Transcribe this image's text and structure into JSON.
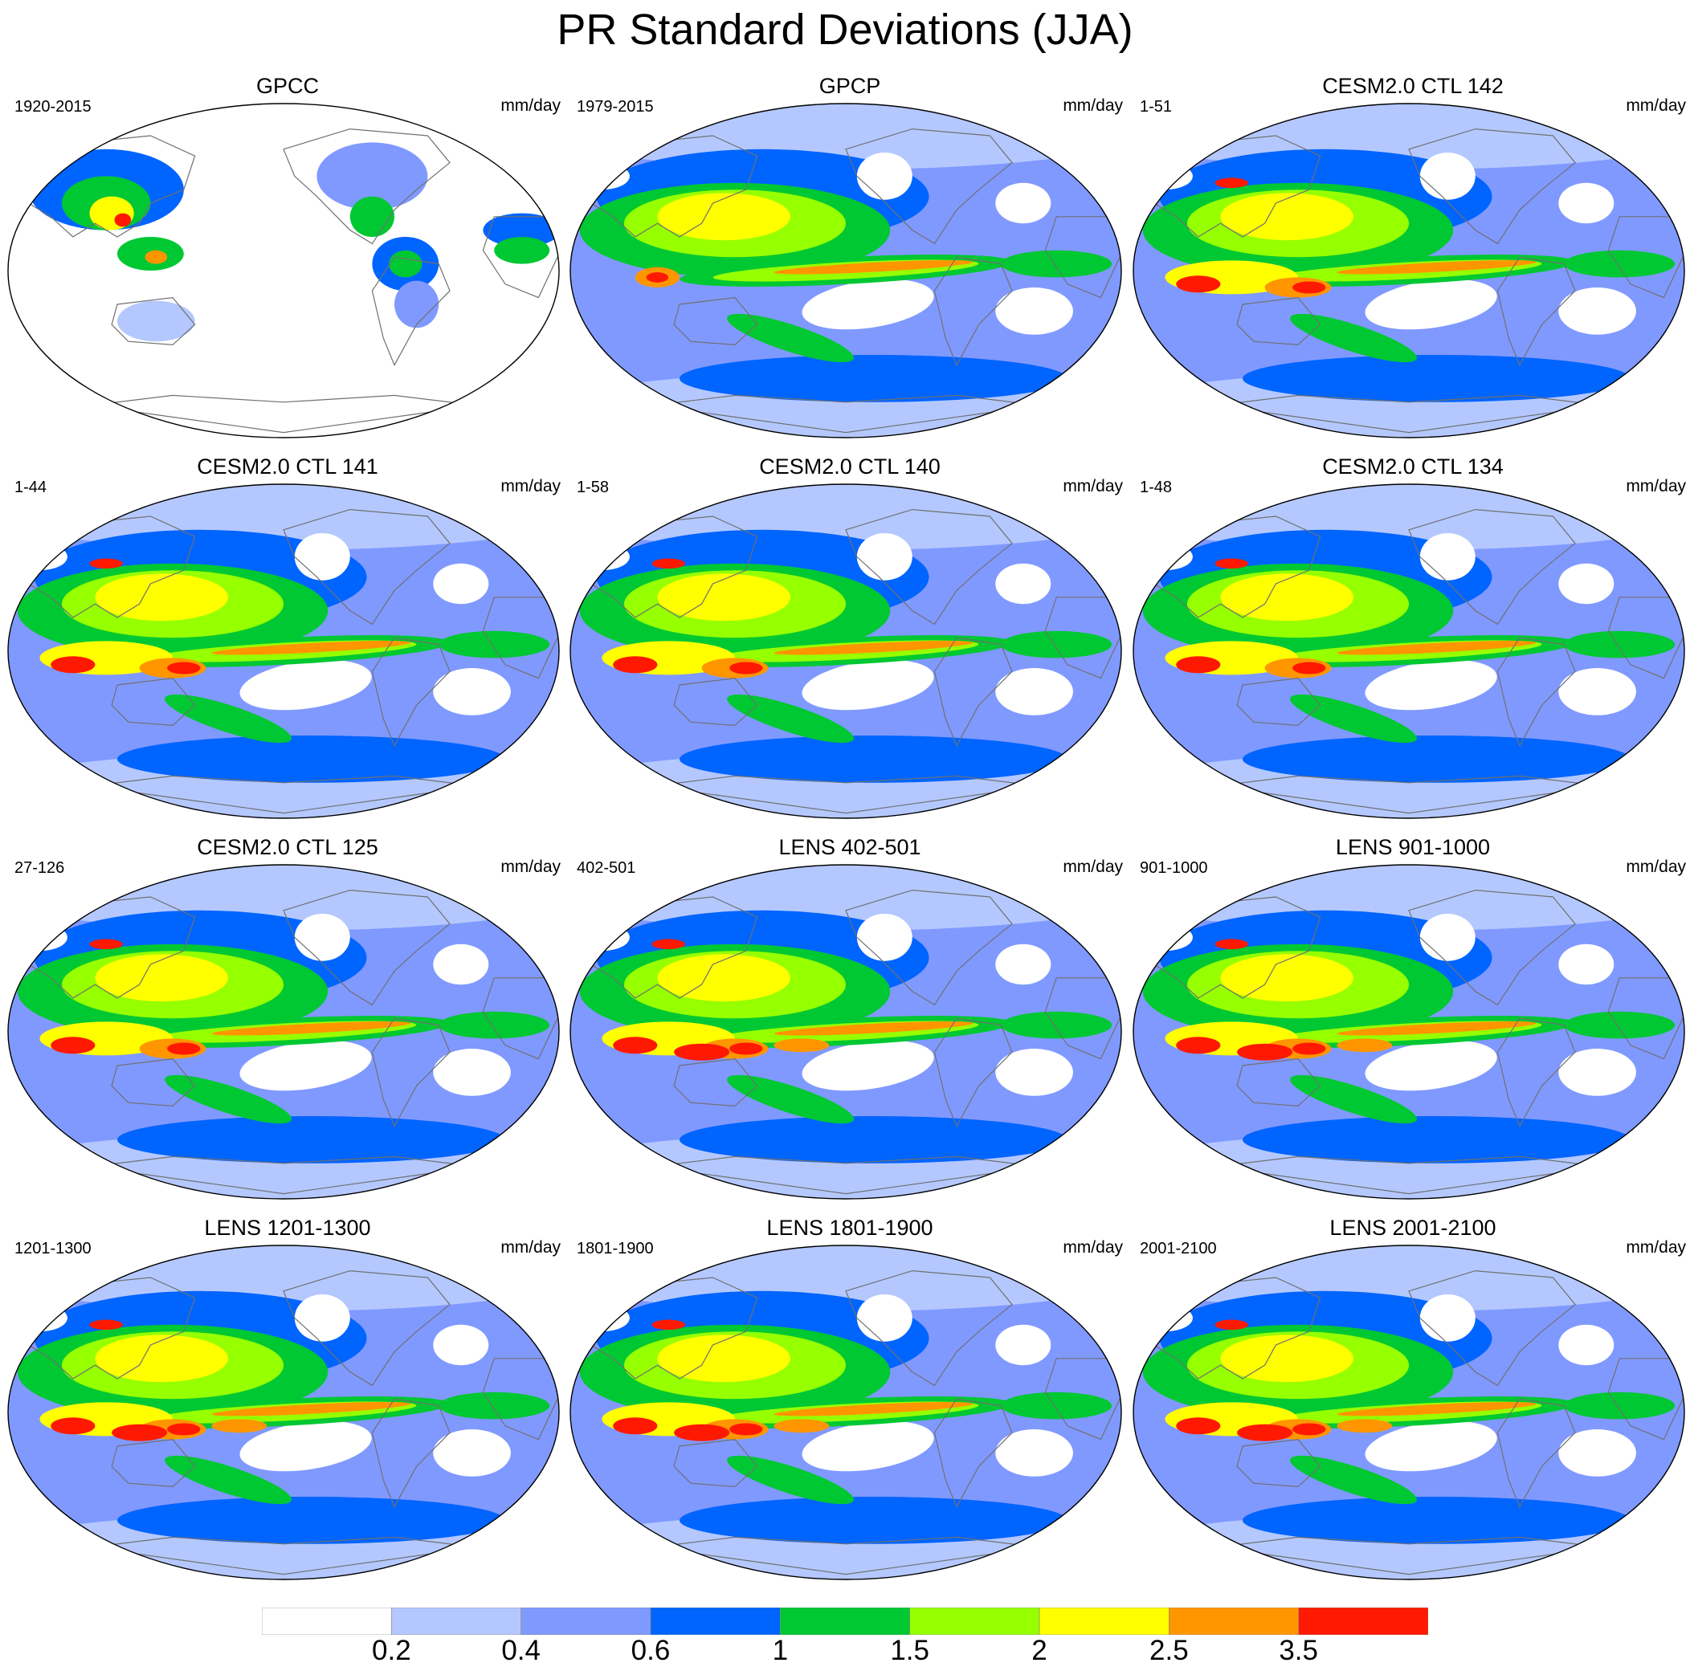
{
  "title": "PR Standard Deviations (JJA)",
  "units": "mm/day",
  "panels": [
    {
      "title": "GPCC",
      "years": "1920-2015",
      "variant": "obs-land"
    },
    {
      "title": "GPCP",
      "years": "1979-2015",
      "variant": "obs"
    },
    {
      "title": "CESM2.0 CTL 142",
      "years": "1-51",
      "variant": "model"
    },
    {
      "title": "CESM2.0 CTL 141",
      "years": "1-44",
      "variant": "model"
    },
    {
      "title": "CESM2.0 CTL 140",
      "years": "1-58",
      "variant": "model"
    },
    {
      "title": "CESM2.0 CTL 134",
      "years": "1-48",
      "variant": "model"
    },
    {
      "title": "CESM2.0 CTL 125",
      "years": "27-126",
      "variant": "model"
    },
    {
      "title": "LENS 402-501",
      "years": "402-501",
      "variant": "lens"
    },
    {
      "title": "LENS 901-1000",
      "years": "901-1000",
      "variant": "lens"
    },
    {
      "title": "LENS 1201-1300",
      "years": "1201-1300",
      "variant": "lens"
    },
    {
      "title": "LENS 1801-1900",
      "years": "1801-1900",
      "variant": "lens"
    },
    {
      "title": "LENS 2001-2100",
      "years": "2001-2100",
      "variant": "lens"
    }
  ],
  "colorbar": {
    "labels": [
      "0.2",
      "0.4",
      "0.6",
      "1",
      "1.5",
      "2",
      "2.5",
      "3.5"
    ],
    "colors": [
      "#ffffff",
      "#b4c8ff",
      "#8099ff",
      "#0064ff",
      "#00c832",
      "#96ff00",
      "#ffff00",
      "#ff9600",
      "#ff1900"
    ]
  }
}
